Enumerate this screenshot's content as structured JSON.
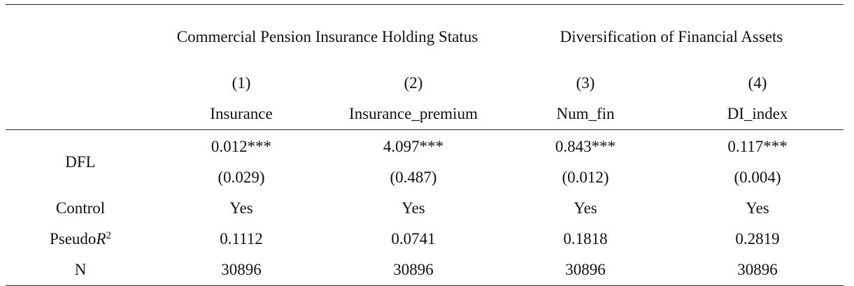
{
  "table": {
    "group_headers": [
      "Commercial Pension Insurance Holding Status",
      "Diversification of Financial Assets"
    ],
    "column_numbers": [
      "(1)",
      "(2)",
      "(3)",
      "(4)"
    ],
    "column_names": [
      "Insurance",
      "Insurance_premium",
      "Num_fin",
      "DI_index"
    ],
    "rows": [
      {
        "label": "DFL",
        "cells": [
          "0.012***",
          "4.097***",
          "0.843***",
          "0.117***"
        ],
        "se": [
          "(0.029)",
          "(0.487)",
          "(0.012)",
          "(0.004)"
        ]
      },
      {
        "label": "Control",
        "cells": [
          "Yes",
          "Yes",
          "Yes",
          "Yes"
        ]
      },
      {
        "label": {
          "text": "Pseudo",
          "var": "R",
          "sup": "2"
        },
        "cells": [
          "0.1112",
          "0.0741",
          "0.1818",
          "0.2819"
        ]
      },
      {
        "label": "N",
        "cells": [
          "30896",
          "30896",
          "30896",
          "30896"
        ]
      }
    ]
  }
}
